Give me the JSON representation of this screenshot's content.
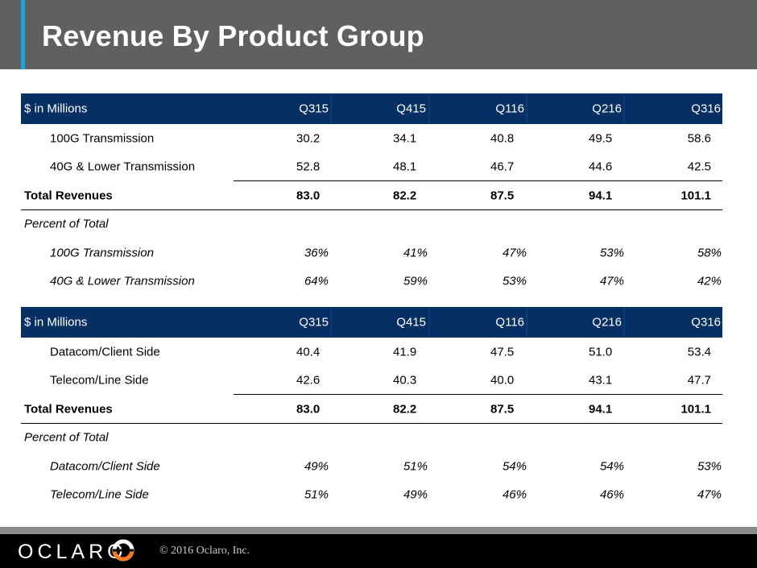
{
  "title": "Revenue By Product Group",
  "table1": {
    "header": {
      "label": "$ in Millions",
      "cols": [
        "Q315",
        "Q415",
        "Q116",
        "Q216",
        "Q316"
      ]
    },
    "rows": [
      {
        "label": "100G Transmission",
        "values": [
          "30.2",
          "34.1",
          "40.8",
          "49.5",
          "58.6"
        ]
      },
      {
        "label": "40G & Lower Transmission",
        "values": [
          "52.8",
          "48.1",
          "46.7",
          "44.6",
          "42.5"
        ]
      },
      {
        "label": "Total Revenues",
        "values": [
          "83.0",
          "82.2",
          "87.5",
          "94.1",
          "101.1"
        ]
      }
    ],
    "percent_label": "Percent of Total",
    "percent_rows": [
      {
        "label": "100G Transmission",
        "values": [
          "36%",
          "41%",
          "47%",
          "53%",
          "58%"
        ]
      },
      {
        "label": "40G & Lower Transmission",
        "values": [
          "64%",
          "59%",
          "53%",
          "47%",
          "42%"
        ]
      }
    ]
  },
  "table2": {
    "header": {
      "label": "$ in Millions",
      "cols": [
        "Q315",
        "Q415",
        "Q116",
        "Q216",
        "Q316"
      ]
    },
    "rows": [
      {
        "label": "Datacom/Client Side",
        "values": [
          "40.4",
          "41.9",
          "47.5",
          "51.0",
          "53.4"
        ]
      },
      {
        "label": "Telecom/Line Side",
        "values": [
          "42.6",
          "40.3",
          "40.0",
          "43.1",
          "47.7"
        ]
      },
      {
        "label": "Total Revenues",
        "values": [
          "83.0",
          "82.2",
          "87.5",
          "94.1",
          "101.1"
        ]
      }
    ],
    "percent_label": "Percent of Total",
    "percent_rows": [
      {
        "label": "Datacom/Client Side",
        "values": [
          "49%",
          "51%",
          "54%",
          "54%",
          "53%"
        ]
      },
      {
        "label": "Telecom/Line Side",
        "values": [
          "51%",
          "49%",
          "46%",
          "46%",
          "47%"
        ]
      }
    ]
  },
  "footer": {
    "logo_text": "OCLARO",
    "copyright": "© 2016 Oclaro, Inc."
  },
  "colors": {
    "header_bg": "#5f6062",
    "accent": "#1aa7e0",
    "table_header_bg": "#062f63",
    "logo_orange": "#f47920"
  }
}
